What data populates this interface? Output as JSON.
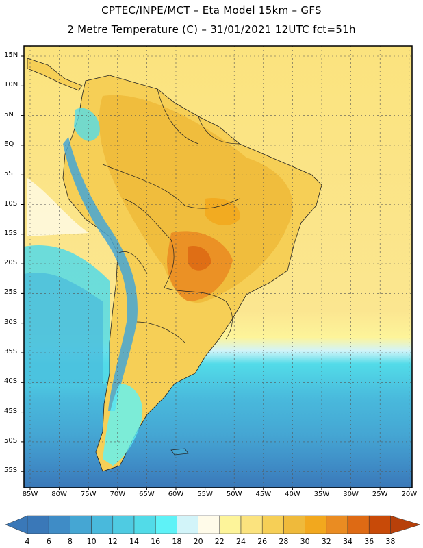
{
  "header": {
    "line1": "CPTEC/INPE/MCT –  Eta Model 15km – GFS",
    "line2": "2 Metre Temperature (C) – 31/01/2021 12UTC fct=51h"
  },
  "axes": {
    "lat_labels": [
      "15N",
      "10N",
      "5N",
      "EQ",
      "5S",
      "10S",
      "15S",
      "20S",
      "25S",
      "30S",
      "35S",
      "40S",
      "45S",
      "50S",
      "55S"
    ],
    "lon_labels": [
      "85W",
      "80W",
      "75W",
      "70W",
      "65W",
      "60W",
      "55W",
      "50W",
      "45W",
      "40W",
      "35W",
      "30W",
      "25W",
      "20W"
    ]
  },
  "colorbar": {
    "labels": [
      "4",
      "6",
      "8",
      "10",
      "12",
      "14",
      "16",
      "18",
      "20",
      "22",
      "24",
      "26",
      "28",
      "30",
      "32",
      "34",
      "36",
      "38"
    ],
    "colors": [
      "#3a78b8",
      "#3f8cc6",
      "#45a6d3",
      "#49b9dc",
      "#4fcbe2",
      "#52dbe8",
      "#5ef2f7",
      "#d2f4f9",
      "#fffbe9",
      "#fdf49a",
      "#fbe37e",
      "#f6cf56",
      "#efba3b",
      "#f2a81e",
      "#ea8c22",
      "#de6a14",
      "#c84a08",
      "#b7400a"
    ]
  },
  "legend_name": "temperature-colorbar"
}
